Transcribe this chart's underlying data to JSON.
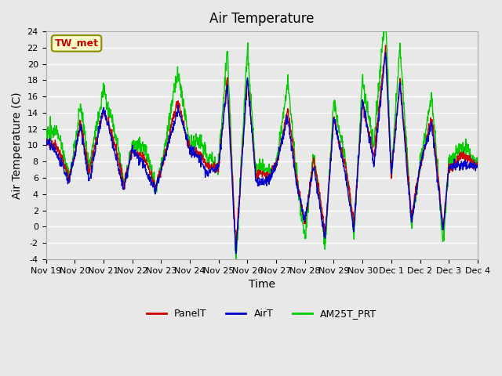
{
  "title": "Air Temperature",
  "xlabel": "Time",
  "ylabel": "Air Temperature (C)",
  "ylim": [
    -4,
    24
  ],
  "yticks": [
    -4,
    -2,
    0,
    2,
    4,
    6,
    8,
    10,
    12,
    14,
    16,
    18,
    20,
    22,
    24
  ],
  "xtick_labels": [
    "Nov 19",
    "Nov 20",
    "Nov 21",
    "Nov 22",
    "Nov 23",
    "Nov 24",
    "Nov 25",
    "Nov 26",
    "Nov 27",
    "Nov 28",
    "Nov 29",
    "Nov 30",
    "Dec 1",
    "Dec 2",
    "Dec 3",
    "Dec 4"
  ],
  "background_color": "#e8e8e8",
  "plot_bg_color": "#e8e8e8",
  "grid_color": "#ffffff",
  "annotation_text": "TW_met",
  "annotation_bg": "#ffffcc",
  "annotation_border": "#8b8b00",
  "annotation_text_color": "#cc0000",
  "line_panel_color": "#cc0000",
  "line_air_color": "#0000cc",
  "line_am25_color": "#00cc00",
  "line_width": 1.0,
  "legend_labels": [
    "PanelT",
    "AirT",
    "AM25T_PRT"
  ],
  "legend_colors": [
    "#cc0000",
    "#0000cc",
    "#00cc00"
  ],
  "title_fontsize": 12,
  "axis_label_fontsize": 10,
  "tick_fontsize": 8
}
